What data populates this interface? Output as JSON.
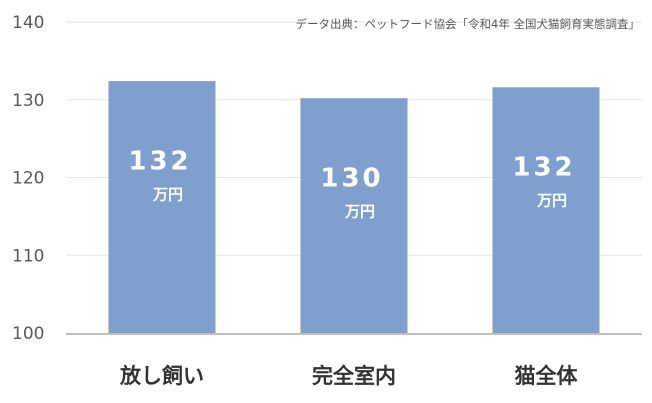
{
  "chart_data": {
    "type": "bar",
    "categories": [
      "放し飼い",
      "完全室内",
      "猫全体"
    ],
    "values": [
      132.4,
      130.2,
      131.6
    ],
    "data_labels": [
      {
        "number": "132",
        "unit": "万円"
      },
      {
        "number": "130",
        "unit": "万円"
      },
      {
        "number": "132",
        "unit": "万円"
      }
    ],
    "yticks": [
      "100",
      "110",
      "120",
      "130",
      "140"
    ],
    "ylim": [
      100,
      140
    ],
    "source": "データ出典：ペットフード協会「令和4年 全国犬猫飼育実態調査」",
    "colors": {
      "bar": "#7f9fcf",
      "grid": "#e6e6e6",
      "axis": "#bfbfbf"
    },
    "grid": true
  }
}
